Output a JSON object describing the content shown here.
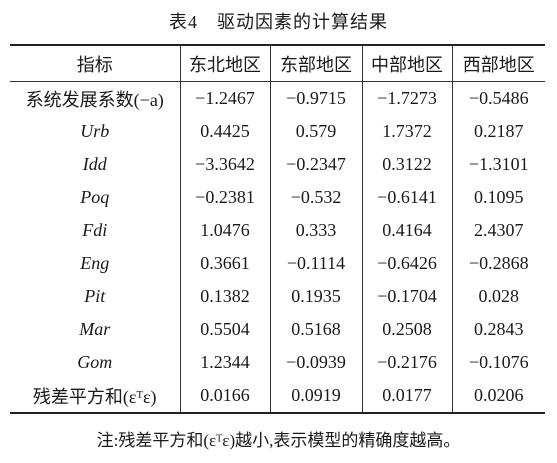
{
  "title": "表4　驱动因素的计算结果",
  "table": {
    "header": [
      "指标",
      "东北地区",
      "东部地区",
      "中部地区",
      "西部地区"
    ],
    "rows": [
      [
        "系统发展系数(−a)",
        "−1.2467",
        "−0.9715",
        "−1.7273",
        "−0.5486"
      ],
      [
        "Urb",
        "0.4425",
        "0.579",
        "1.7372",
        "0.2187"
      ],
      [
        "Idd",
        "−3.3642",
        "−0.2347",
        "0.3122",
        "−1.3101"
      ],
      [
        "Poq",
        "−0.2381",
        "−0.532",
        "−0.6141",
        "0.1095"
      ],
      [
        "Fdi",
        "1.0476",
        "0.333",
        "0.4164",
        "2.4307"
      ],
      [
        "Eng",
        "0.3661",
        "−0.1114",
        "−0.6426",
        "−0.2868"
      ],
      [
        "Pit",
        "0.1382",
        "0.1935",
        "−0.1704",
        "0.028"
      ],
      [
        "Mar",
        "0.5504",
        "0.5168",
        "0.2508",
        "0.2843"
      ],
      [
        "Gom",
        "1.2344",
        "−0.0939",
        "−0.2176",
        "−0.1076"
      ],
      [
        "残差平方和(εᵀε)",
        "0.0166",
        "0.0919",
        "0.0177",
        "0.0206"
      ]
    ]
  },
  "note": "注:残差平方和(εᵀε)越小,表示模型的精确度越高。"
}
